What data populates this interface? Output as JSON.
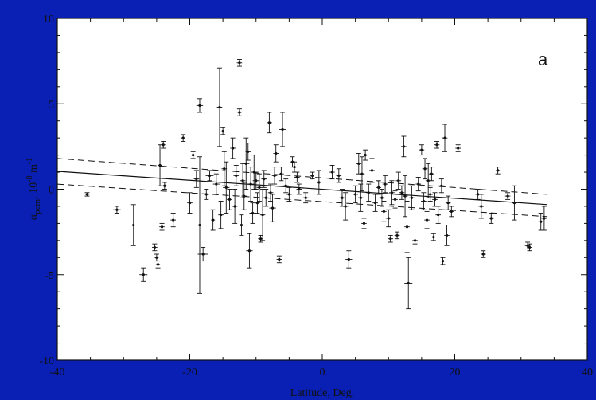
{
  "chart_data": {
    "type": "scatter",
    "title": "",
    "panel_label": "a",
    "xlabel": "Latitude, Deg.",
    "ylabel_main": "α",
    "ylabel_sub": "pcm",
    "ylabel_rest": ", 10",
    "ylabel_exp": "-8",
    "ylabel_unit": " m",
    "ylabel_unit_exp": "-1",
    "xlim": [
      -40,
      40
    ],
    "ylim": [
      -10,
      10
    ],
    "xticks": [
      -40,
      -20,
      0,
      20,
      40
    ],
    "yticks": [
      -10,
      -5,
      0,
      5,
      10
    ],
    "xtick_labels": [
      "-40",
      "-20",
      "0",
      "20",
      "40"
    ],
    "ytick_labels": [
      "-10",
      "-5",
      "0",
      "5",
      "10"
    ],
    "grid": false,
    "colors": {
      "background": "#0a1fb4",
      "plot": "#ffffff",
      "ink": "#111111"
    },
    "fit_line": {
      "x": [
        -40,
        34
      ],
      "y": [
        1.05,
        -0.9
      ]
    },
    "confidence_upper": {
      "x": [
        -40,
        34
      ],
      "y": [
        1.8,
        -0.3
      ]
    },
    "confidence_lower": {
      "x": [
        -40,
        34
      ],
      "y": [
        0.3,
        -1.6
      ]
    },
    "points": [
      {
        "x": -35.5,
        "y": -0.3,
        "xerr": 0.3,
        "yerr": 0.1
      },
      {
        "x": -31,
        "y": -1.2,
        "xerr": 0.6,
        "yerr": 0.2
      },
      {
        "x": -28.5,
        "y": -2.1,
        "xerr": 0.3,
        "yerr": 1.2
      },
      {
        "x": -27,
        "y": -5.0,
        "xerr": 0.6,
        "yerr": 0.4
      },
      {
        "x": -25.3,
        "y": -3.4,
        "xerr": 0.4,
        "yerr": 0.2
      },
      {
        "x": -25,
        "y": -4.0,
        "xerr": 0.3,
        "yerr": 0.2
      },
      {
        "x": -24.8,
        "y": -4.4,
        "xerr": 0.3,
        "yerr": 0.2
      },
      {
        "x": -24.5,
        "y": 1.4,
        "xerr": 0.3,
        "yerr": 1.2
      },
      {
        "x": -24,
        "y": 2.6,
        "xerr": 0.3,
        "yerr": 0.2
      },
      {
        "x": -24.2,
        "y": -2.2,
        "xerr": 0.4,
        "yerr": 0.2
      },
      {
        "x": -23.8,
        "y": 0.2,
        "xerr": 0.3,
        "yerr": 0.2
      },
      {
        "x": -22.5,
        "y": -1.8,
        "xerr": 0.4,
        "yerr": 0.4
      },
      {
        "x": -21,
        "y": 3.0,
        "xerr": 0.3,
        "yerr": 0.2
      },
      {
        "x": -20,
        "y": -0.8,
        "xerr": 0.4,
        "yerr": 0.6
      },
      {
        "x": -19.5,
        "y": 2.0,
        "xerr": 0.4,
        "yerr": 0.2
      },
      {
        "x": -19,
        "y": 0.6,
        "xerr": 0.4,
        "yerr": 0.5
      },
      {
        "x": -18.5,
        "y": 4.9,
        "xerr": 0.5,
        "yerr": 0.4
      },
      {
        "x": -18.5,
        "y": -2.1,
        "xerr": 0.4,
        "yerr": 4.0
      },
      {
        "x": -18,
        "y": -3.8,
        "xerr": 0.8,
        "yerr": 0.4
      },
      {
        "x": -17.5,
        "y": -0.3,
        "xerr": 0.4,
        "yerr": 0.3
      },
      {
        "x": -17,
        "y": 0.8,
        "xerr": 0.6,
        "yerr": 0.3
      },
      {
        "x": -16.5,
        "y": -1.8,
        "xerr": 0.3,
        "yerr": 0.6
      },
      {
        "x": -16,
        "y": 0.3,
        "xerr": 0.5,
        "yerr": 0.6
      },
      {
        "x": -15.5,
        "y": 4.8,
        "xerr": 0.4,
        "yerr": 2.3
      },
      {
        "x": -15.3,
        "y": -1.5,
        "xerr": 0.4,
        "yerr": 0.8
      },
      {
        "x": -15,
        "y": 3.4,
        "xerr": 0.3,
        "yerr": 0.2
      },
      {
        "x": -14.8,
        "y": 1.2,
        "xerr": 0.4,
        "yerr": 1.0
      },
      {
        "x": -14.5,
        "y": 0.1,
        "xerr": 0.5,
        "yerr": 1.5
      },
      {
        "x": -14,
        "y": -0.6,
        "xerr": 0.4,
        "yerr": 0.6
      },
      {
        "x": -13.5,
        "y": 2.4,
        "xerr": 0.4,
        "yerr": 0.6
      },
      {
        "x": -13.2,
        "y": -1.0,
        "xerr": 0.4,
        "yerr": 1.0
      },
      {
        "x": -13,
        "y": 0.8,
        "xerr": 0.4,
        "yerr": 0.6
      },
      {
        "x": -12.5,
        "y": 7.4,
        "xerr": 0.4,
        "yerr": 0.2
      },
      {
        "x": -12.5,
        "y": 4.5,
        "xerr": 0.3,
        "yerr": 0.2
      },
      {
        "x": -12.2,
        "y": -2.1,
        "xerr": 0.3,
        "yerr": 0.6
      },
      {
        "x": -12,
        "y": 0.5,
        "xerr": 0.4,
        "yerr": 1.0
      },
      {
        "x": -11.8,
        "y": -0.4,
        "xerr": 0.4,
        "yerr": 0.8
      },
      {
        "x": -11.5,
        "y": 1.5,
        "xerr": 0.5,
        "yerr": 1.5
      },
      {
        "x": -11.2,
        "y": 2.2,
        "xerr": 0.4,
        "yerr": 0.5
      },
      {
        "x": -11,
        "y": -3.6,
        "xerr": 0.5,
        "yerr": 1.0
      },
      {
        "x": -10.8,
        "y": 0.3,
        "xerr": 0.5,
        "yerr": 1.0
      },
      {
        "x": -10.5,
        "y": -1.4,
        "xerr": 0.5,
        "yerr": 0.6
      },
      {
        "x": -10.3,
        "y": 1.0,
        "xerr": 0.4,
        "yerr": 1.0
      },
      {
        "x": -10,
        "y": 0.5,
        "xerr": 0.5,
        "yerr": 0.5
      },
      {
        "x": -9.8,
        "y": -0.8,
        "xerr": 0.4,
        "yerr": 0.6
      },
      {
        "x": -9.5,
        "y": 0.1,
        "xerr": 0.4,
        "yerr": 0.8
      },
      {
        "x": -9.3,
        "y": -2.9,
        "xerr": 0.4,
        "yerr": 0.2
      },
      {
        "x": -9,
        "y": -1.5,
        "xerr": 0.4,
        "yerr": 1.5
      },
      {
        "x": -8.8,
        "y": 0.6,
        "xerr": 0.4,
        "yerr": 0.5
      },
      {
        "x": -8.5,
        "y": -0.5,
        "xerr": 0.4,
        "yerr": 0.5
      },
      {
        "x": -8,
        "y": 3.9,
        "xerr": 0.4,
        "yerr": 0.6
      },
      {
        "x": -7.8,
        "y": -0.2,
        "xerr": 0.4,
        "yerr": 0.5
      },
      {
        "x": -7.5,
        "y": -1.1,
        "xerr": 0.5,
        "yerr": 0.8
      },
      {
        "x": -7.2,
        "y": 0.8,
        "xerr": 0.4,
        "yerr": 0.5
      },
      {
        "x": -7,
        "y": 2.1,
        "xerr": 0.4,
        "yerr": 0.5
      },
      {
        "x": -6.5,
        "y": -4.1,
        "xerr": 0.4,
        "yerr": 0.2
      },
      {
        "x": -6.2,
        "y": 0.9,
        "xerr": 0.4,
        "yerr": 0.4
      },
      {
        "x": -6,
        "y": 3.5,
        "xerr": 0.6,
        "yerr": 1.0
      },
      {
        "x": -5.5,
        "y": 0.2,
        "xerr": 0.4,
        "yerr": 0.4
      },
      {
        "x": -5,
        "y": -0.3,
        "xerr": 0.4,
        "yerr": 0.4
      },
      {
        "x": -4.5,
        "y": 1.6,
        "xerr": 0.4,
        "yerr": 0.3
      },
      {
        "x": -4.2,
        "y": 1.3,
        "xerr": 0.4,
        "yerr": 0.3
      },
      {
        "x": -3.8,
        "y": 0.7,
        "xerr": 0.4,
        "yerr": 0.3
      },
      {
        "x": -3.5,
        "y": 0.0,
        "xerr": 0.4,
        "yerr": 0.3
      },
      {
        "x": -2.5,
        "y": -0.5,
        "xerr": 0.4,
        "yerr": 0.3
      },
      {
        "x": -1.5,
        "y": 0.8,
        "xerr": 0.3,
        "yerr": 0.2
      },
      {
        "x": -0.5,
        "y": 0.4,
        "xerr": 0.3,
        "yerr": 0.7
      },
      {
        "x": 1.5,
        "y": 1.0,
        "xerr": 0.4,
        "yerr": 0.4
      },
      {
        "x": 2.5,
        "y": 0.8,
        "xerr": 0.4,
        "yerr": 0.4
      },
      {
        "x": 3,
        "y": -0.5,
        "xerr": 0.4,
        "yerr": 0.5
      },
      {
        "x": 3.5,
        "y": -1.0,
        "xerr": 0.4,
        "yerr": 0.8
      },
      {
        "x": 4,
        "y": -4.1,
        "xerr": 0.5,
        "yerr": 0.5
      },
      {
        "x": 5,
        "y": -0.3,
        "xerr": 0.4,
        "yerr": 0.5
      },
      {
        "x": 5.5,
        "y": 1.5,
        "xerr": 0.4,
        "yerr": 0.6
      },
      {
        "x": 5.8,
        "y": -0.5,
        "xerr": 0.4,
        "yerr": 0.8
      },
      {
        "x": 6,
        "y": 0.9,
        "xerr": 0.4,
        "yerr": 1.0
      },
      {
        "x": 6.3,
        "y": -2.0,
        "xerr": 0.4,
        "yerr": 0.3
      },
      {
        "x": 6.5,
        "y": 2.0,
        "xerr": 0.4,
        "yerr": 0.3
      },
      {
        "x": 7,
        "y": -0.2,
        "xerr": 0.4,
        "yerr": 0.5
      },
      {
        "x": 7.5,
        "y": 1.1,
        "xerr": 0.4,
        "yerr": 0.7
      },
      {
        "x": 8,
        "y": -0.8,
        "xerr": 0.4,
        "yerr": 0.5
      },
      {
        "x": 8.5,
        "y": 0.1,
        "xerr": 0.4,
        "yerr": 0.4
      },
      {
        "x": 9,
        "y": -0.5,
        "xerr": 0.4,
        "yerr": 0.5
      },
      {
        "x": 9.3,
        "y": -1.3,
        "xerr": 0.4,
        "yerr": 0.6
      },
      {
        "x": 9.5,
        "y": 0.3,
        "xerr": 0.4,
        "yerr": 0.5
      },
      {
        "x": 10,
        "y": -1.7,
        "xerr": 0.4,
        "yerr": 0.5
      },
      {
        "x": 10.3,
        "y": -2.9,
        "xerr": 0.4,
        "yerr": 0.2
      },
      {
        "x": 10.5,
        "y": -0.2,
        "xerr": 0.4,
        "yerr": 0.7
      },
      {
        "x": 11,
        "y": -0.6,
        "xerr": 0.4,
        "yerr": 0.5
      },
      {
        "x": 11.3,
        "y": -2.7,
        "xerr": 0.4,
        "yerr": 0.2
      },
      {
        "x": 11.5,
        "y": 0.5,
        "xerr": 0.4,
        "yerr": 0.5
      },
      {
        "x": 12,
        "y": -0.2,
        "xerr": 0.4,
        "yerr": 0.4
      },
      {
        "x": 12.3,
        "y": 2.5,
        "xerr": 0.4,
        "yerr": 0.6
      },
      {
        "x": 12.5,
        "y": -0.4,
        "xerr": 0.4,
        "yerr": 1.2
      },
      {
        "x": 12.8,
        "y": -2.2,
        "xerr": 0.4,
        "yerr": 1.5
      },
      {
        "x": 13,
        "y": -5.5,
        "xerr": 0.6,
        "yerr": 1.5
      },
      {
        "x": 13.5,
        "y": -0.5,
        "xerr": 0.4,
        "yerr": 0.7
      },
      {
        "x": 14,
        "y": -3.0,
        "xerr": 0.4,
        "yerr": 0.2
      },
      {
        "x": 14.5,
        "y": 0.3,
        "xerr": 0.4,
        "yerr": 0.4
      },
      {
        "x": 15,
        "y": 2.3,
        "xerr": 0.4,
        "yerr": 0.3
      },
      {
        "x": 15.3,
        "y": -0.7,
        "xerr": 0.4,
        "yerr": 0.5
      },
      {
        "x": 15.5,
        "y": 1.2,
        "xerr": 0.4,
        "yerr": 0.6
      },
      {
        "x": 15.8,
        "y": -1.8,
        "xerr": 0.4,
        "yerr": 0.5
      },
      {
        "x": 16,
        "y": 0.5,
        "xerr": 0.4,
        "yerr": 1.0
      },
      {
        "x": 16.3,
        "y": -0.3,
        "xerr": 0.4,
        "yerr": 0.4
      },
      {
        "x": 16.5,
        "y": 0.9,
        "xerr": 0.4,
        "yerr": 0.4
      },
      {
        "x": 16.8,
        "y": -2.8,
        "xerr": 0.4,
        "yerr": 0.2
      },
      {
        "x": 17,
        "y": -0.6,
        "xerr": 0.4,
        "yerr": 0.4
      },
      {
        "x": 17.3,
        "y": 2.6,
        "xerr": 0.4,
        "yerr": 0.2
      },
      {
        "x": 17.5,
        "y": -1.5,
        "xerr": 0.4,
        "yerr": 0.5
      },
      {
        "x": 18,
        "y": 0.2,
        "xerr": 0.4,
        "yerr": 0.4
      },
      {
        "x": 18.2,
        "y": -4.2,
        "xerr": 0.4,
        "yerr": 0.2
      },
      {
        "x": 18.5,
        "y": 3.0,
        "xerr": 0.4,
        "yerr": 0.8
      },
      {
        "x": 18.8,
        "y": -2.7,
        "xerr": 0.4,
        "yerr": 0.6
      },
      {
        "x": 19,
        "y": -0.8,
        "xerr": 0.4,
        "yerr": 0.4
      },
      {
        "x": 19.5,
        "y": -1.3,
        "xerr": 0.4,
        "yerr": 0.3
      },
      {
        "x": 20.5,
        "y": 2.4,
        "xerr": 0.4,
        "yerr": 0.2
      },
      {
        "x": 23.5,
        "y": -0.3,
        "xerr": 0.4,
        "yerr": 0.3
      },
      {
        "x": 24,
        "y": -1.0,
        "xerr": 0.4,
        "yerr": 0.7
      },
      {
        "x": 24.3,
        "y": -3.8,
        "xerr": 0.4,
        "yerr": 0.2
      },
      {
        "x": 25.5,
        "y": -1.7,
        "xerr": 0.4,
        "yerr": 0.3
      },
      {
        "x": 26.5,
        "y": 1.1,
        "xerr": 0.3,
        "yerr": 0.2
      },
      {
        "x": 28,
        "y": -0.4,
        "xerr": 0.4,
        "yerr": 0.2
      },
      {
        "x": 29,
        "y": -0.8,
        "xerr": 0.4,
        "yerr": 1.0
      },
      {
        "x": 31,
        "y": -3.3,
        "xerr": 0.4,
        "yerr": 0.2
      },
      {
        "x": 31.3,
        "y": -3.4,
        "xerr": 0.4,
        "yerr": 0.2
      },
      {
        "x": 33,
        "y": -1.9,
        "xerr": 0.4,
        "yerr": 0.5
      },
      {
        "x": 33.5,
        "y": -1.7,
        "xerr": 0.4,
        "yerr": 0.7
      }
    ]
  }
}
